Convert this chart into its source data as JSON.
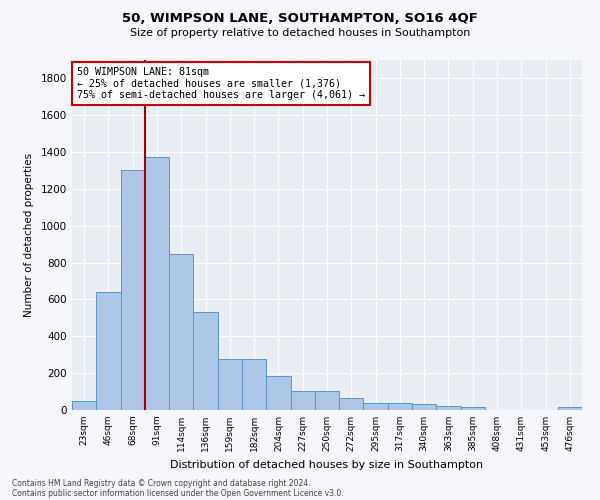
{
  "title": "50, WIMPSON LANE, SOUTHAMPTON, SO16 4QF",
  "subtitle": "Size of property relative to detached houses in Southampton",
  "xlabel": "Distribution of detached houses by size in Southampton",
  "ylabel": "Number of detached properties",
  "categories": [
    "23sqm",
    "46sqm",
    "68sqm",
    "91sqm",
    "114sqm",
    "136sqm",
    "159sqm",
    "182sqm",
    "204sqm",
    "227sqm",
    "250sqm",
    "272sqm",
    "295sqm",
    "317sqm",
    "340sqm",
    "363sqm",
    "385sqm",
    "408sqm",
    "431sqm",
    "453sqm",
    "476sqm"
  ],
  "values": [
    50,
    638,
    1305,
    1375,
    848,
    530,
    275,
    275,
    185,
    103,
    103,
    65,
    40,
    40,
    30,
    22,
    15,
    0,
    0,
    0,
    15
  ],
  "bar_color": "#aec6e8",
  "bar_edgecolor": "#5a96c8",
  "vline_x": 2.5,
  "vline_color": "#aa0000",
  "annotation_text": "50 WIMPSON LANE: 81sqm\n← 25% of detached houses are smaller (1,376)\n75% of semi-detached houses are larger (4,061) →",
  "annotation_box_color": "#ffffff",
  "annotation_box_edgecolor": "#cc0000",
  "ylim": [
    0,
    1900
  ],
  "yticks": [
    0,
    200,
    400,
    600,
    800,
    1000,
    1200,
    1400,
    1600,
    1800
  ],
  "bg_color": "#e8eef4",
  "grid_color": "#ffffff",
  "fig_bg_color": "#f5f7fa",
  "footer1": "Contains HM Land Registry data © Crown copyright and database right 2024.",
  "footer2": "Contains public sector information licensed under the Open Government Licence v3.0."
}
